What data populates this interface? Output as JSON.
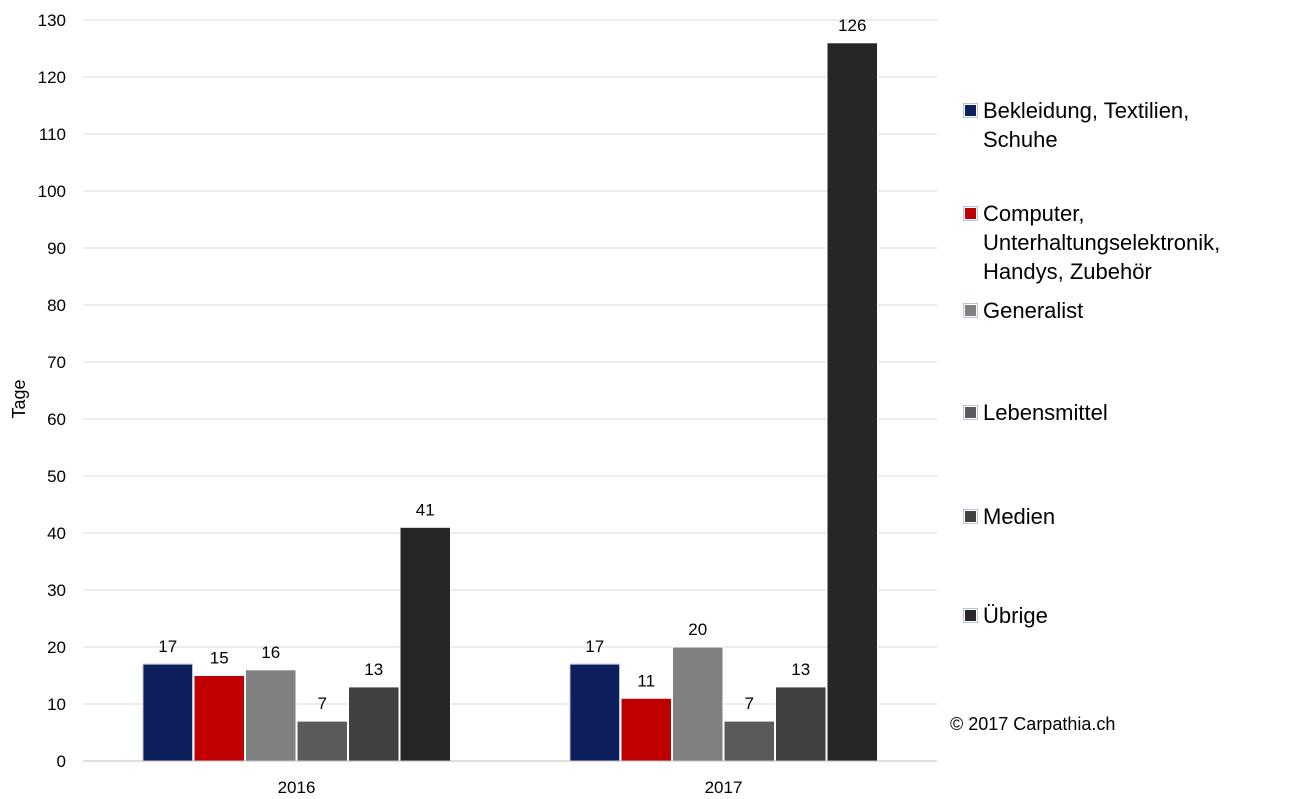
{
  "chart_data": {
    "type": "bar",
    "categories": [
      "2016",
      "2017"
    ],
    "ylabel": "Tage",
    "xlabel": "",
    "ylim": [
      0,
      130
    ],
    "yticks": [
      0,
      10,
      20,
      30,
      40,
      50,
      60,
      70,
      80,
      90,
      100,
      110,
      120,
      130
    ],
    "grid": true,
    "legend_position": "right",
    "series": [
      {
        "name": "Bekleidung, Textilien, Schuhe",
        "values": [
          17,
          17
        ],
        "value_labels": [
          "17",
          "17"
        ],
        "color": "#0d1f5c"
      },
      {
        "name": "Computer, Unterhaltungselektronik, Handys, Zubehör",
        "values": [
          15,
          11
        ],
        "value_labels": [
          "15",
          "11"
        ],
        "color": "#c00000"
      },
      {
        "name": "Generalist",
        "values": [
          16,
          20
        ],
        "value_labels": [
          "16",
          "20"
        ],
        "color": "#808080"
      },
      {
        "name": "Lebensmittel",
        "values": [
          7,
          7
        ],
        "value_labels": [
          "7",
          "7"
        ],
        "color": "#5a5a5a"
      },
      {
        "name": "Medien",
        "values": [
          13,
          13
        ],
        "value_labels": [
          "13",
          "13"
        ],
        "color": "#404040"
      },
      {
        "name": "Übrige",
        "values": [
          41,
          126
        ],
        "value_labels": [
          "41",
          "126"
        ],
        "color": "#262626"
      }
    ]
  },
  "copyright": "© 2017 Carpathia.ch"
}
